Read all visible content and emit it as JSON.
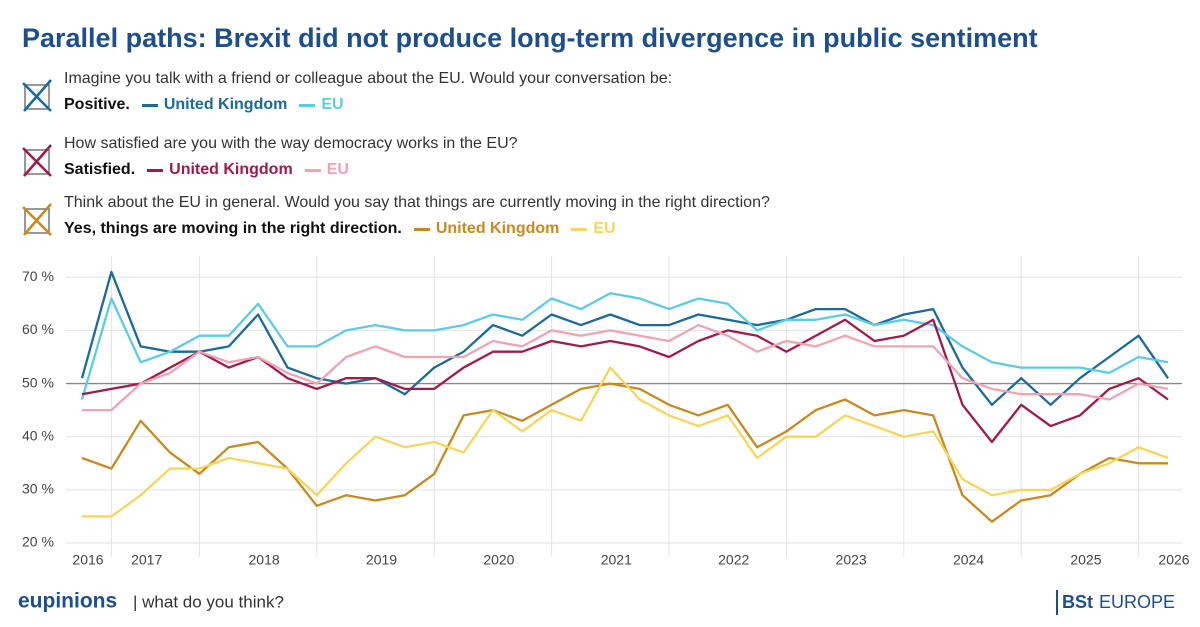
{
  "chart_data": {
    "type": "line",
    "title": "Parallel paths: Brexit did not produce long-term divergence in public sentiment",
    "questions": [
      {
        "text": "Imagine you talk with a friend or colleague about the EU. Would your conversation be:",
        "answer": "Positive."
      },
      {
        "text": "How satisfied are you with the way democracy works in the EU?",
        "answer": "Satisfied."
      },
      {
        "text": "Think about the EU in general. Would you say that things are currently moving in the right direction?",
        "answer": "Yes, things are moving in the right direction."
      }
    ],
    "categories": [
      "2016",
      null,
      "2017",
      null,
      null,
      null,
      "2018",
      null,
      null,
      null,
      "2019",
      null,
      null,
      null,
      "2020",
      null,
      null,
      null,
      "2021",
      null,
      null,
      null,
      "2022",
      null,
      null,
      null,
      "2023",
      null,
      null,
      null,
      "2024",
      null,
      null,
      null,
      "2025",
      null,
      null,
      "2026"
    ],
    "series": [
      {
        "name": "United Kingdom",
        "color": "#1a6a9a",
        "values": [
          51,
          71,
          57,
          56,
          56,
          57,
          63,
          53,
          51,
          50,
          51,
          48,
          53,
          56,
          61,
          59,
          63,
          61,
          63,
          61,
          61,
          63,
          62,
          61,
          62,
          64,
          64,
          61,
          63,
          64,
          53,
          46,
          51,
          46,
          51,
          55,
          59,
          51
        ]
      },
      {
        "name": "EU",
        "color": "#5ccbe6",
        "values": [
          47,
          66,
          54,
          56,
          59,
          59,
          65,
          57,
          57,
          60,
          61,
          60,
          60,
          61,
          63,
          62,
          66,
          64,
          67,
          66,
          64,
          66,
          65,
          60,
          62,
          62,
          63,
          61,
          62,
          61,
          57,
          54,
          53,
          53,
          53,
          52,
          55,
          54
        ]
      },
      {
        "name": "United Kingdom",
        "color": "#a01b4b",
        "values": [
          48,
          49,
          50,
          53,
          56,
          53,
          55,
          51,
          49,
          51,
          51,
          49,
          49,
          53,
          56,
          56,
          58,
          57,
          58,
          57,
          55,
          58,
          60,
          59,
          56,
          59,
          62,
          58,
          59,
          62,
          46,
          39,
          46,
          42,
          44,
          49,
          51,
          47
        ]
      },
      {
        "name": "EU",
        "color": "#f0a3b1",
        "values": [
          45,
          45,
          50,
          52,
          56,
          54,
          55,
          52,
          50,
          55,
          57,
          55,
          55,
          55,
          58,
          57,
          60,
          59,
          60,
          59,
          58,
          61,
          59,
          56,
          58,
          57,
          59,
          57,
          57,
          57,
          51,
          49,
          48,
          48,
          48,
          47,
          50,
          49
        ]
      },
      {
        "name": "United Kingdom",
        "color": "#c8891f",
        "values": [
          36,
          34,
          43,
          37,
          33,
          38,
          39,
          34,
          27,
          29,
          28,
          29,
          33,
          44,
          45,
          43,
          46,
          49,
          50,
          49,
          46,
          44,
          46,
          38,
          41,
          45,
          47,
          44,
          45,
          44,
          29,
          24,
          28,
          29,
          33,
          36,
          35,
          35
        ]
      },
      {
        "name": "EU",
        "color": "#f5d55a",
        "values": [
          25,
          25,
          29,
          34,
          34,
          36,
          35,
          34,
          29,
          35,
          40,
          38,
          39,
          37,
          45,
          41,
          45,
          43,
          53,
          47,
          44,
          42,
          44,
          36,
          40,
          40,
          44,
          42,
          40,
          41,
          32,
          29,
          30,
          30,
          33,
          35,
          38,
          36
        ]
      }
    ],
    "ylim": [
      20,
      74
    ],
    "yticks": [
      {
        "value": 20,
        "label": "20 %"
      },
      {
        "value": 30,
        "label": "30 %"
      },
      {
        "value": 40,
        "label": "40 %"
      },
      {
        "value": 50,
        "label": "50 %"
      },
      {
        "value": 60,
        "label": "60 %"
      },
      {
        "value": 70,
        "label": "70 %"
      }
    ],
    "reference_line": 50,
    "grid": true,
    "footer": {
      "brand": "eupinions",
      "tagline": "| what do you think?",
      "logo_left": "BSt",
      "logo_right": "EUROPE"
    }
  }
}
